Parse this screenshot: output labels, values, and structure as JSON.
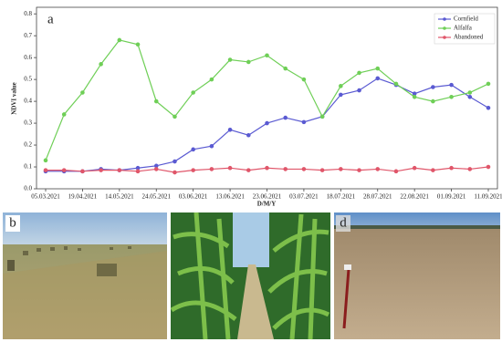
{
  "chart_data": {
    "type": "line",
    "panel_label": "a",
    "xlabel": "D/M/Y",
    "ylabel": "NDVI value",
    "categories": [
      "05.03.2021",
      null,
      "19.04.2021",
      null,
      "14.05.2021",
      null,
      "24.05.2021",
      null,
      "03.06.2021",
      null,
      "13.06.2021",
      null,
      "23.06.2021",
      null,
      "03.07.2021",
      null,
      "18.07.2021",
      null,
      "28.07.2021",
      null,
      "22.08.2021",
      null,
      "01.09.2021",
      null,
      "11.09.2021"
    ],
    "series": [
      {
        "name": "Cornfield",
        "color": "#5a5ad2",
        "values": [
          0.08,
          0.08,
          0.08,
          0.09,
          0.085,
          0.095,
          0.105,
          0.125,
          0.18,
          0.195,
          0.27,
          0.245,
          0.3,
          0.325,
          0.305,
          0.33,
          0.43,
          0.45,
          0.505,
          0.475,
          0.435,
          0.465,
          0.475,
          0.42,
          0.37
        ]
      },
      {
        "name": "Alfalfa",
        "color": "#6fcf57",
        "values": [
          0.13,
          0.34,
          0.44,
          0.57,
          0.68,
          0.66,
          0.4,
          0.33,
          0.44,
          0.5,
          0.59,
          0.58,
          0.61,
          0.55,
          0.5,
          0.33,
          0.47,
          0.53,
          0.55,
          0.48,
          0.42,
          0.4,
          0.42,
          0.44,
          0.48
        ]
      },
      {
        "name": "Abandoned",
        "color": "#e0566a",
        "values": [
          0.085,
          0.085,
          0.08,
          0.085,
          0.085,
          0.08,
          0.09,
          0.075,
          0.085,
          0.09,
          0.095,
          0.085,
          0.095,
          0.09,
          0.09,
          0.085,
          0.09,
          0.085,
          0.09,
          0.08,
          0.095,
          0.085,
          0.095,
          0.09,
          0.1
        ]
      }
    ],
    "ylim": [
      0,
      0.83
    ],
    "yticks": [
      {
        "value": 0,
        "label": "0.0"
      },
      0.1,
      0.2,
      0.3,
      0.4,
      0.5,
      0.6,
      0.7,
      0.8
    ],
    "grid": false,
    "legend": "upper right"
  },
  "photos": {
    "b": "b",
    "d": "d"
  }
}
